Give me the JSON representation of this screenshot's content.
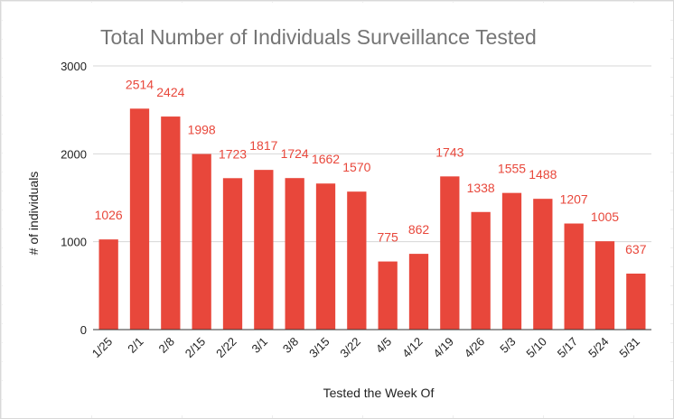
{
  "chart_data": {
    "type": "bar",
    "title": "Total Number of Individuals Surveillance Tested",
    "xlabel": "Tested the Week Of",
    "ylabel": "# of individuals",
    "categories": [
      "1/25",
      "2/1",
      "2/8",
      "2/15",
      "2/22",
      "3/1",
      "3/8",
      "3/15",
      "3/22",
      "4/5",
      "4/12",
      "4/19",
      "4/26",
      "5/3",
      "5/10",
      "5/17",
      "5/24",
      "5/31"
    ],
    "values": [
      1026,
      2514,
      2424,
      1998,
      1723,
      1817,
      1724,
      1662,
      1570,
      775,
      862,
      1743,
      1338,
      1555,
      1488,
      1207,
      1005,
      637
    ],
    "ylim": [
      0,
      3000
    ],
    "yticks": [
      0,
      1000,
      2000,
      3000
    ],
    "grid": true,
    "legend": "none",
    "bar_color": "#e8473b",
    "data_labels": true
  }
}
